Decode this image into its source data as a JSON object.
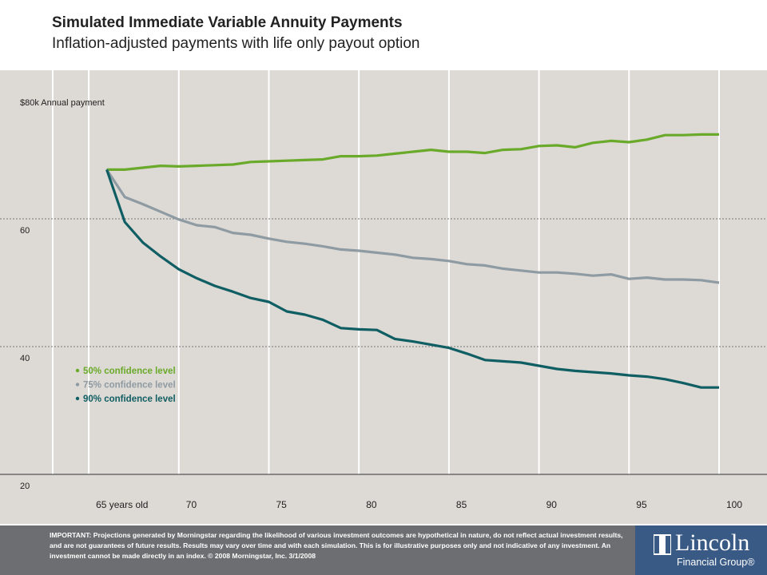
{
  "header": {
    "title": "Simulated Immediate Variable Annuity Payments",
    "subtitle": "Inflation-adjusted payments with life only payout option"
  },
  "chart_data": {
    "type": "line",
    "title": "Simulated Immediate Variable Annuity Payments",
    "subtitle": "Inflation-adjusted payments with life only payout option",
    "xlabel": "",
    "ylabel": "Annual payment",
    "xlim": [
      63,
      100
    ],
    "ylim": [
      20,
      80
    ],
    "x_ticks": [
      {
        "value": 65,
        "label": "65 years old"
      },
      {
        "value": 70,
        "label": "70"
      },
      {
        "value": 75,
        "label": "75"
      },
      {
        "value": 80,
        "label": "80"
      },
      {
        "value": 85,
        "label": "85"
      },
      {
        "value": 90,
        "label": "90"
      },
      {
        "value": 95,
        "label": "95"
      },
      {
        "value": 100,
        "label": "100"
      }
    ],
    "y_ticks": [
      {
        "value": 80,
        "label": "$80k Annual payment"
      },
      {
        "value": 60,
        "label": "60"
      },
      {
        "value": 40,
        "label": "40"
      },
      {
        "value": 20,
        "label": "20"
      }
    ],
    "grid": true,
    "legend_position": "bottom-left",
    "x": [
      66,
      67,
      68,
      69,
      70,
      71,
      72,
      73,
      74,
      75,
      76,
      77,
      78,
      79,
      80,
      81,
      82,
      83,
      84,
      85,
      86,
      87,
      88,
      89,
      90,
      91,
      92,
      93,
      94,
      95,
      96,
      97,
      98,
      99,
      100
    ],
    "series": [
      {
        "name": "50% confidence level",
        "color": "#6aaa2a",
        "values": [
          67.7,
          67.7,
          68.0,
          68.3,
          68.2,
          68.3,
          68.4,
          68.5,
          68.9,
          69.0,
          69.1,
          69.2,
          69.3,
          69.8,
          69.8,
          69.9,
          70.2,
          70.5,
          70.8,
          70.5,
          70.5,
          70.3,
          70.8,
          70.9,
          71.4,
          71.5,
          71.2,
          71.9,
          72.2,
          72.0,
          72.4,
          73.1,
          73.1,
          73.2,
          73.2
        ]
      },
      {
        "name": "75% confidence level",
        "color": "#8e9ba3",
        "values": [
          67.7,
          63.4,
          62.3,
          61.1,
          59.9,
          59.0,
          58.7,
          57.8,
          57.5,
          56.9,
          56.4,
          56.1,
          55.7,
          55.2,
          55.0,
          54.7,
          54.4,
          53.9,
          53.7,
          53.4,
          52.9,
          52.7,
          52.2,
          51.9,
          51.6,
          51.6,
          51.4,
          51.1,
          51.3,
          50.6,
          50.8,
          50.5,
          50.5,
          50.4,
          50.0
        ]
      },
      {
        "name": "90% confidence level",
        "color": "#0f5e63",
        "values": [
          67.7,
          59.5,
          56.3,
          54.1,
          52.1,
          50.7,
          49.5,
          48.6,
          47.6,
          47.0,
          45.5,
          45.0,
          44.2,
          42.9,
          42.7,
          42.6,
          41.2,
          40.8,
          40.3,
          39.8,
          38.9,
          37.9,
          37.7,
          37.5,
          37.0,
          36.5,
          36.2,
          36.0,
          35.8,
          35.5,
          35.3,
          34.9,
          34.3,
          33.6,
          33.6
        ]
      }
    ]
  },
  "disclaimer": {
    "text": "IMPORTANT: Projections generated by Morningstar regarding the likelihood of various investment outcomes are hypothetical in nature, do not reflect actual investment results, and are not guarantees of future results. Results may vary over time and with each simulation. This is for illustrative purposes only and not indicative of any investment. An investment cannot be made directly in an index. © 2008 Morningstar, Inc. 3/1/2008"
  },
  "logo": {
    "name": "Lincoln",
    "sub": "Financial Group®"
  },
  "colors": {
    "plot_background": "#ddd9d4",
    "grid": "#ffffff",
    "footer": "#6d6e71",
    "logo": "#3a5a86"
  }
}
